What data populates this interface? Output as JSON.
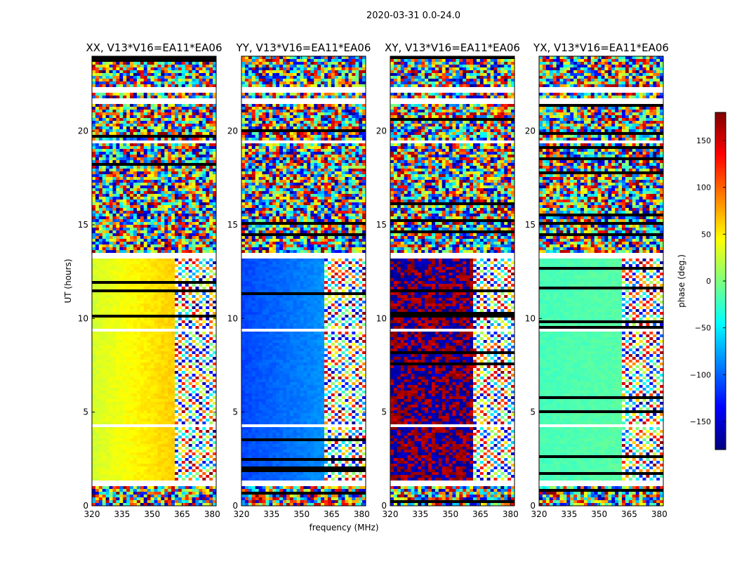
{
  "figure": {
    "suptitle": "2020-03-31 0.0-24.0",
    "xlabel": "frequency (MHz)",
    "ylabel": "UT (hours)"
  },
  "colorbar": {
    "label": "phase (deg.)",
    "range": [
      -180,
      180
    ],
    "ticks": [
      150,
      100,
      50,
      0,
      -50,
      -100,
      -150
    ],
    "tick_labels": [
      "150",
      "100",
      "50",
      "0",
      "−50",
      "−100",
      "−150"
    ],
    "colormap": "jet",
    "stops": [
      "#00007f",
      "#0000ff",
      "#007fff",
      "#00ffff",
      "#7fff7f",
      "#ffff00",
      "#ff7f00",
      "#ff0000",
      "#7f0000"
    ]
  },
  "chart_data": [
    {
      "type": "heatmap",
      "title": "XX, V13*V16=EA11*EA06",
      "xlim": [
        320,
        382
      ],
      "ylim": [
        0,
        24
      ],
      "xticks": [
        320,
        335,
        350,
        365,
        380
      ],
      "yticks": [
        0,
        5,
        10,
        15,
        20
      ],
      "clean_phase_low": 30,
      "clean_phase_high": 80,
      "channel_split_mhz": 361
    },
    {
      "type": "heatmap",
      "title": "YY, V13*V16=EA11*EA06",
      "xlim": [
        320,
        382
      ],
      "ylim": [
        0,
        24
      ],
      "xticks": [
        320,
        335,
        350,
        365,
        380
      ],
      "yticks": [
        0,
        5,
        10,
        15,
        20
      ],
      "clean_phase_low": -110,
      "clean_phase_high": -70,
      "channel_split_mhz": 361
    },
    {
      "type": "heatmap",
      "title": "XY, V13*V16=EA11*EA06",
      "xlim": [
        320,
        382
      ],
      "ylim": [
        0,
        24
      ],
      "xticks": [
        320,
        335,
        350,
        365,
        380
      ],
      "yticks": [
        0,
        5,
        10,
        15,
        20
      ],
      "clean_phase_low": 150,
      "clean_phase_high": -150,
      "channel_split_mhz": 361
    },
    {
      "type": "heatmap",
      "title": "YX, V13*V16=EA11*EA06",
      "xlim": [
        320,
        382
      ],
      "ylim": [
        0,
        24
      ],
      "xticks": [
        320,
        335,
        350,
        365,
        380
      ],
      "yticks": [
        0,
        5,
        10,
        15,
        20
      ],
      "clean_phase_low": -20,
      "clean_phase_high": -10,
      "channel_split_mhz": 361
    }
  ],
  "flagged_ut_ranges": [
    [
      1.05,
      1.3
    ],
    [
      21.4,
      21.7
    ],
    [
      22.0,
      22.3
    ],
    [
      19.3,
      19.5
    ],
    [
      4.25,
      4.3
    ],
    [
      9.35,
      9.4
    ],
    [
      13.2,
      13.45
    ]
  ]
}
